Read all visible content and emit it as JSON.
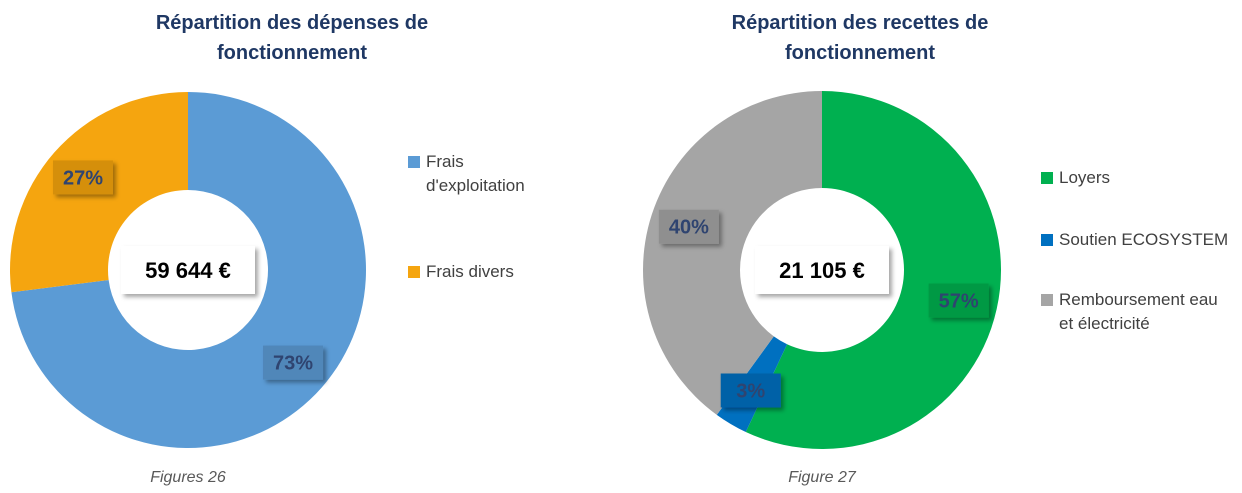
{
  "chart_data": [
    {
      "type": "donut",
      "title": "Répartition des dépenses de fonctionnement",
      "categories": [
        "Frais d'exploitation",
        "Frais divers"
      ],
      "values": [
        73,
        27
      ],
      "value_labels": [
        "73%",
        "27%"
      ],
      "colors": [
        "#5b9bd5",
        "#f5a50f"
      ],
      "center_label": "59 644 €",
      "caption": "Figures 26"
    },
    {
      "type": "donut",
      "title": "Répartition des recettes de fonctionnement",
      "categories": [
        "Loyers",
        "Soutien ECOSYSTEM",
        "Remboursement eau et électricité"
      ],
      "values": [
        57,
        3,
        40
      ],
      "value_labels": [
        "57%",
        "3%",
        "40%"
      ],
      "colors": [
        "#00b050",
        "#0070c0",
        "#a5a5a5"
      ],
      "center_label": "21 105 €",
      "caption": "Figure 27"
    }
  ]
}
